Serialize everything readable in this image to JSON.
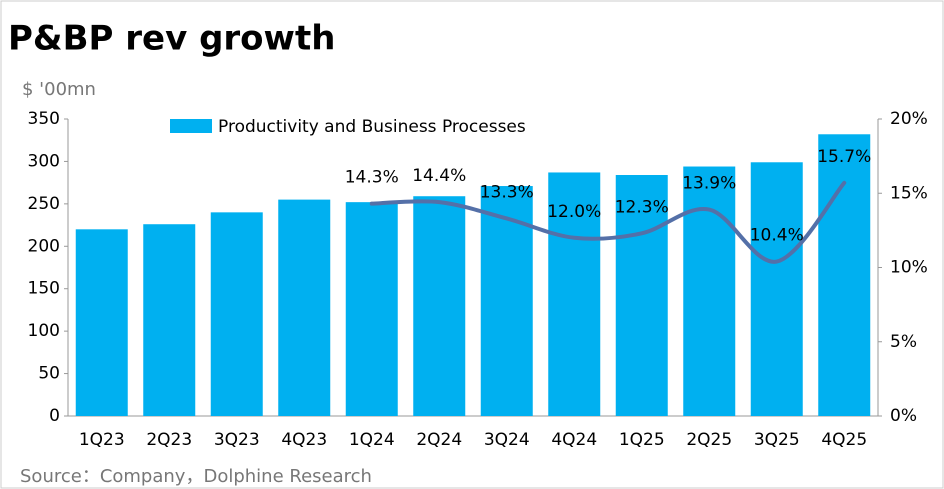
{
  "chart_data": {
    "type": "bar_line",
    "title": "P&BP rev growth",
    "y_label": "$ '00mn",
    "source": "Source：Company，Dolphine Research",
    "categories": [
      "1Q23",
      "2Q23",
      "3Q23",
      "4Q23",
      "1Q24",
      "2Q24",
      "3Q24",
      "4Q24",
      "1Q25",
      "2Q25",
      "3Q25",
      "4Q25"
    ],
    "series": [
      {
        "name": "Productivity and Business Processes",
        "color": "#00b0f0",
        "type": "bar",
        "values": [
          220,
          226,
          240,
          255,
          252,
          259,
          271,
          287,
          284,
          294,
          299,
          332
        ]
      },
      {
        "color": "#5470a8",
        "type": "line",
        "axis": "y2",
        "values": [
          null,
          null,
          null,
          null,
          14.3,
          14.4,
          13.3,
          12.0,
          12.3,
          13.9,
          10.4,
          15.7
        ],
        "value_labels": [
          null,
          null,
          null,
          null,
          "14.3%",
          "14.4%",
          "13.3%",
          "12.0%",
          "12.3%",
          "13.9%",
          "10.4%",
          "15.7%"
        ]
      }
    ],
    "ylim": [
      0,
      350
    ],
    "yticks": [
      0,
      50,
      100,
      150,
      200,
      250,
      300,
      350
    ],
    "y2lim": [
      0,
      20
    ],
    "y2ticks": [
      {
        "value": 0,
        "label": "0%"
      },
      {
        "value": 5,
        "label": "5%"
      },
      {
        "value": 10,
        "label": "10%"
      },
      {
        "value": 15,
        "label": "15%"
      },
      {
        "value": 20,
        "label": "20%"
      }
    ],
    "legend": "top-left"
  }
}
